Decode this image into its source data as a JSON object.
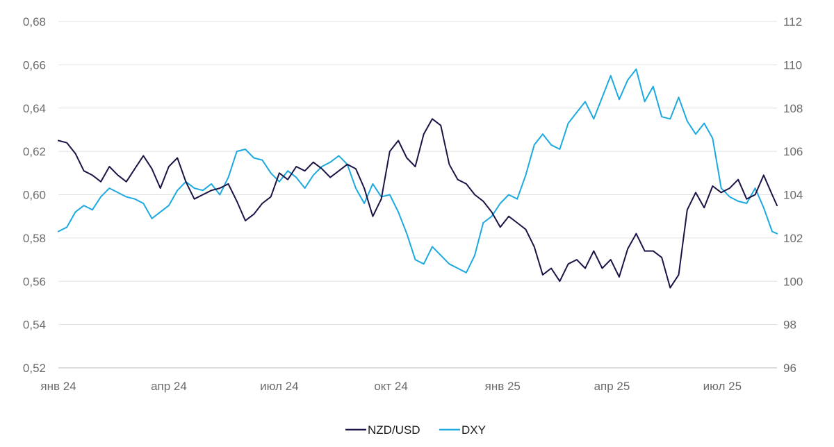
{
  "chart_data": {
    "type": "line",
    "title": "",
    "xlabel": "",
    "ylabel": "",
    "x_ticks": [
      "янв 24",
      "апр 24",
      "июл 24",
      "окт 24",
      "янв 25",
      "апр 25",
      "июл 25"
    ],
    "x_tick_dates": [
      "2024-01-01",
      "2024-04-01",
      "2024-07-01",
      "2024-10-01",
      "2025-01-01",
      "2025-04-01",
      "2025-07-01"
    ],
    "x_range": [
      "2024-01-01",
      "2025-08-15"
    ],
    "y_left": {
      "min": 0.52,
      "max": 0.68,
      "ticks": [
        "0,52",
        "0,54",
        "0,56",
        "0,58",
        "0,60",
        "0,62",
        "0,64",
        "0,66",
        "0,68"
      ]
    },
    "y_right": {
      "min": 96,
      "max": 112,
      "ticks": [
        "96",
        "98",
        "100",
        "102",
        "104",
        "106",
        "108",
        "110",
        "112"
      ]
    },
    "grid": true,
    "legend_position": "bottom-center",
    "series": [
      {
        "name": "NZD/USD",
        "axis": "left",
        "color": "#1a1446",
        "points": [
          [
            "2024-01-01",
            0.625
          ],
          [
            "2024-01-08",
            0.624
          ],
          [
            "2024-01-15",
            0.619
          ],
          [
            "2024-01-22",
            0.611
          ],
          [
            "2024-01-29",
            0.609
          ],
          [
            "2024-02-05",
            0.606
          ],
          [
            "2024-02-12",
            0.613
          ],
          [
            "2024-02-19",
            0.609
          ],
          [
            "2024-02-26",
            0.606
          ],
          [
            "2024-03-04",
            0.612
          ],
          [
            "2024-03-11",
            0.618
          ],
          [
            "2024-03-18",
            0.612
          ],
          [
            "2024-03-25",
            0.603
          ],
          [
            "2024-04-01",
            0.613
          ],
          [
            "2024-04-08",
            0.617
          ],
          [
            "2024-04-15",
            0.606
          ],
          [
            "2024-04-22",
            0.598
          ],
          [
            "2024-04-29",
            0.6
          ],
          [
            "2024-05-06",
            0.602
          ],
          [
            "2024-05-13",
            0.603
          ],
          [
            "2024-05-20",
            0.605
          ],
          [
            "2024-05-27",
            0.597
          ],
          [
            "2024-06-03",
            0.588
          ],
          [
            "2024-06-10",
            0.591
          ],
          [
            "2024-06-17",
            0.596
          ],
          [
            "2024-06-24",
            0.599
          ],
          [
            "2024-07-01",
            0.61
          ],
          [
            "2024-07-08",
            0.607
          ],
          [
            "2024-07-15",
            0.613
          ],
          [
            "2024-07-22",
            0.611
          ],
          [
            "2024-07-29",
            0.615
          ],
          [
            "2024-08-05",
            0.612
          ],
          [
            "2024-08-12",
            0.608
          ],
          [
            "2024-08-19",
            0.611
          ],
          [
            "2024-08-26",
            0.614
          ],
          [
            "2024-09-02",
            0.612
          ],
          [
            "2024-09-09",
            0.603
          ],
          [
            "2024-09-16",
            0.59
          ],
          [
            "2024-09-23",
            0.598
          ],
          [
            "2024-09-30",
            0.62
          ],
          [
            "2024-10-07",
            0.625
          ],
          [
            "2024-10-14",
            0.617
          ],
          [
            "2024-10-21",
            0.613
          ],
          [
            "2024-10-28",
            0.628
          ],
          [
            "2024-11-04",
            0.635
          ],
          [
            "2024-11-11",
            0.632
          ],
          [
            "2024-11-18",
            0.614
          ],
          [
            "2024-11-25",
            0.607
          ],
          [
            "2024-12-02",
            0.605
          ],
          [
            "2024-12-09",
            0.6
          ],
          [
            "2024-12-16",
            0.597
          ],
          [
            "2024-12-23",
            0.592
          ],
          [
            "2024-12-30",
            0.585
          ],
          [
            "2025-01-06",
            0.59
          ],
          [
            "2025-01-13",
            0.587
          ],
          [
            "2025-01-20",
            0.584
          ],
          [
            "2025-01-27",
            0.576
          ],
          [
            "2025-02-03",
            0.563
          ],
          [
            "2025-02-10",
            0.566
          ],
          [
            "2025-02-17",
            0.56
          ],
          [
            "2025-02-24",
            0.568
          ],
          [
            "2025-03-03",
            0.57
          ],
          [
            "2025-03-10",
            0.566
          ],
          [
            "2025-03-17",
            0.574
          ],
          [
            "2025-03-24",
            0.566
          ],
          [
            "2025-03-31",
            0.57
          ],
          [
            "2025-04-07",
            0.562
          ],
          [
            "2025-04-14",
            0.575
          ],
          [
            "2025-04-21",
            0.582
          ],
          [
            "2025-04-28",
            0.574
          ],
          [
            "2025-05-05",
            0.574
          ],
          [
            "2025-05-12",
            0.571
          ],
          [
            "2025-05-19",
            0.557
          ],
          [
            "2025-05-26",
            0.563
          ],
          [
            "2025-06-02",
            0.593
          ],
          [
            "2025-06-09",
            0.601
          ],
          [
            "2025-06-16",
            0.594
          ],
          [
            "2025-06-23",
            0.604
          ],
          [
            "2025-06-30",
            0.601
          ],
          [
            "2025-07-07",
            0.603
          ],
          [
            "2025-07-14",
            0.607
          ],
          [
            "2025-07-21",
            0.598
          ],
          [
            "2025-07-28",
            0.6
          ],
          [
            "2025-08-04",
            0.609
          ],
          [
            "2025-08-11",
            0.6
          ],
          [
            "2025-08-15",
            0.595
          ]
        ]
      },
      {
        "name": "DXY",
        "axis": "right",
        "color": "#1ba9e0",
        "points": [
          [
            "2024-01-01",
            102.3
          ],
          [
            "2024-01-08",
            102.5
          ],
          [
            "2024-01-15",
            103.2
          ],
          [
            "2024-01-22",
            103.5
          ],
          [
            "2024-01-29",
            103.3
          ],
          [
            "2024-02-05",
            103.9
          ],
          [
            "2024-02-12",
            104.3
          ],
          [
            "2024-02-19",
            104.1
          ],
          [
            "2024-02-26",
            103.9
          ],
          [
            "2024-03-04",
            103.8
          ],
          [
            "2024-03-11",
            103.6
          ],
          [
            "2024-03-18",
            102.9
          ],
          [
            "2024-03-25",
            103.2
          ],
          [
            "2024-04-01",
            103.5
          ],
          [
            "2024-04-08",
            104.2
          ],
          [
            "2024-04-15",
            104.6
          ],
          [
            "2024-04-22",
            104.3
          ],
          [
            "2024-04-29",
            104.2
          ],
          [
            "2024-05-06",
            104.5
          ],
          [
            "2024-05-13",
            104.0
          ],
          [
            "2024-05-20",
            104.8
          ],
          [
            "2024-05-27",
            106.0
          ],
          [
            "2024-06-03",
            106.1
          ],
          [
            "2024-06-10",
            105.7
          ],
          [
            "2024-06-17",
            105.6
          ],
          [
            "2024-06-24",
            105.0
          ],
          [
            "2024-07-01",
            104.6
          ],
          [
            "2024-07-08",
            105.1
          ],
          [
            "2024-07-15",
            104.8
          ],
          [
            "2024-07-22",
            104.3
          ],
          [
            "2024-07-29",
            104.9
          ],
          [
            "2024-08-05",
            105.3
          ],
          [
            "2024-08-12",
            105.5
          ],
          [
            "2024-08-19",
            105.8
          ],
          [
            "2024-08-26",
            105.4
          ],
          [
            "2024-09-02",
            104.3
          ],
          [
            "2024-09-09",
            103.6
          ],
          [
            "2024-09-16",
            104.5
          ],
          [
            "2024-09-23",
            103.9
          ],
          [
            "2024-09-30",
            104.0
          ],
          [
            "2024-10-07",
            103.2
          ],
          [
            "2024-10-14",
            102.2
          ],
          [
            "2024-10-21",
            101.0
          ],
          [
            "2024-10-28",
            100.8
          ],
          [
            "2024-11-04",
            101.6
          ],
          [
            "2024-11-11",
            101.2
          ],
          [
            "2024-11-18",
            100.8
          ],
          [
            "2024-11-25",
            100.6
          ],
          [
            "2024-12-02",
            100.4
          ],
          [
            "2024-12-09",
            101.2
          ],
          [
            "2024-12-16",
            102.7
          ],
          [
            "2024-12-23",
            103.0
          ],
          [
            "2024-12-30",
            103.6
          ],
          [
            "2025-01-06",
            104.0
          ],
          [
            "2025-01-13",
            103.8
          ],
          [
            "2025-01-20",
            104.9
          ],
          [
            "2025-01-27",
            106.3
          ],
          [
            "2025-02-03",
            106.8
          ],
          [
            "2025-02-10",
            106.3
          ],
          [
            "2025-02-17",
            106.1
          ],
          [
            "2025-02-24",
            107.3
          ],
          [
            "2025-03-03",
            107.8
          ],
          [
            "2025-03-10",
            108.3
          ],
          [
            "2025-03-17",
            107.5
          ],
          [
            "2025-03-24",
            108.5
          ],
          [
            "2025-03-31",
            109.5
          ],
          [
            "2025-04-07",
            108.4
          ],
          [
            "2025-04-14",
            109.3
          ],
          [
            "2025-04-21",
            109.8
          ],
          [
            "2025-04-28",
            108.3
          ],
          [
            "2025-05-05",
            109.0
          ],
          [
            "2025-05-12",
            107.6
          ],
          [
            "2025-05-19",
            107.5
          ],
          [
            "2025-05-26",
            108.5
          ],
          [
            "2025-06-02",
            107.4
          ],
          [
            "2025-06-09",
            106.8
          ],
          [
            "2025-06-16",
            107.3
          ],
          [
            "2025-06-23",
            106.6
          ],
          [
            "2025-06-30",
            104.3
          ],
          [
            "2025-07-07",
            103.9
          ],
          [
            "2025-07-14",
            103.7
          ],
          [
            "2025-07-21",
            103.6
          ],
          [
            "2025-07-28",
            104.3
          ],
          [
            "2025-08-04",
            103.4
          ],
          [
            "2025-08-11",
            102.3
          ],
          [
            "2025-08-15",
            102.2
          ]
        ]
      }
    ]
  }
}
